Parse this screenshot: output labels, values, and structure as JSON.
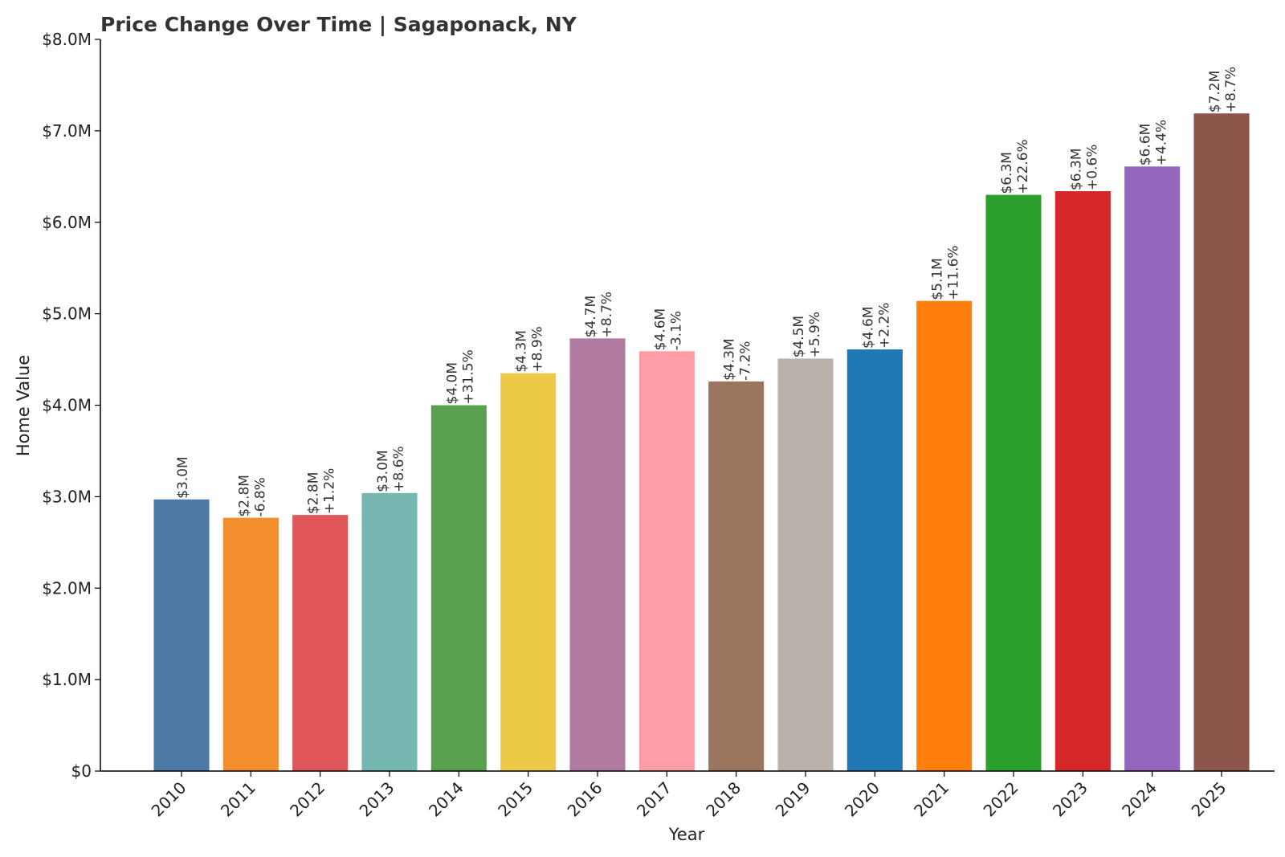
{
  "chart_data": {
    "type": "bar",
    "title": "Price Change Over Time | Sagaponack, NY",
    "xlabel": "Year",
    "ylabel": "Home Value",
    "ylim": [
      0,
      8000000
    ],
    "yticks": [
      0,
      1000000,
      2000000,
      3000000,
      4000000,
      5000000,
      6000000,
      7000000,
      8000000
    ],
    "ytick_labels": [
      "$0",
      "$1.0M",
      "$2.0M",
      "$3.0M",
      "$4.0M",
      "$5.0M",
      "$6.0M",
      "$7.0M",
      "$8.0M"
    ],
    "grid": false,
    "categories": [
      "2010",
      "2011",
      "2012",
      "2013",
      "2014",
      "2015",
      "2016",
      "2017",
      "2018",
      "2019",
      "2020",
      "2021",
      "2022",
      "2023",
      "2024",
      "2025"
    ],
    "values": [
      2970000,
      2770000,
      2800000,
      3040000,
      4000000,
      4350000,
      4730000,
      4590000,
      4260000,
      4510000,
      4610000,
      5140000,
      6300000,
      6340000,
      6610000,
      7190000
    ],
    "value_labels": [
      "$3.0M",
      "$2.8M",
      "$2.8M",
      "$3.0M",
      "$4.0M",
      "$4.3M",
      "$4.7M",
      "$4.6M",
      "$4.3M",
      "$4.5M",
      "$4.6M",
      "$5.1M",
      "$6.3M",
      "$6.3M",
      "$6.6M",
      "$7.2M"
    ],
    "change_labels": [
      "",
      "-6.8%",
      "+1.2%",
      "+8.6%",
      "+31.5%",
      "+8.9%",
      "+8.7%",
      "-3.1%",
      "-7.2%",
      "+5.9%",
      "+2.2%",
      "+11.6%",
      "+22.6%",
      "+0.6%",
      "+4.4%",
      "+8.7%"
    ],
    "colors": [
      "#4e79a7",
      "#f28e2b",
      "#e15759",
      "#76b7b2",
      "#59a14f",
      "#edc948",
      "#b07aa1",
      "#ff9da7",
      "#9c755f",
      "#bab0ac",
      "#1f77b4",
      "#ff7f0e",
      "#2ca02c",
      "#d62728",
      "#9467bd",
      "#8c564b"
    ]
  }
}
